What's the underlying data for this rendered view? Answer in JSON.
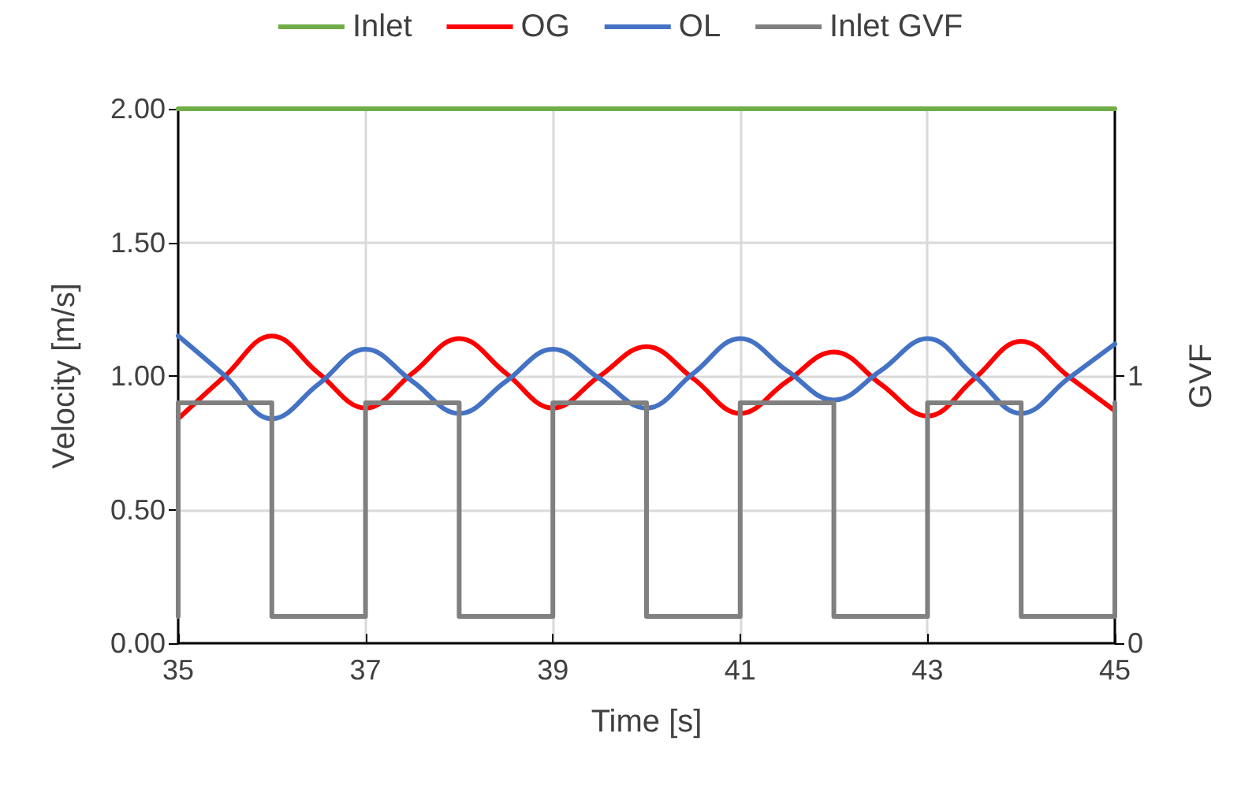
{
  "chart_data": {
    "type": "line",
    "xlabel": "Time [s]",
    "ylabel": "Velocity [m/s]",
    "y2label": "GVF",
    "xlim": [
      35,
      45
    ],
    "xticks": [
      35,
      37,
      39,
      41,
      43,
      45
    ],
    "ylim": [
      0,
      2
    ],
    "yticks": [
      {
        "value": 0,
        "label": "0.00"
      },
      {
        "value": 0.5,
        "label": "0.50"
      },
      {
        "value": 1,
        "label": "1.00"
      },
      {
        "value": 1.5,
        "label": "1.50"
      },
      {
        "value": 2,
        "label": "2.00"
      }
    ],
    "y2lim": [
      0,
      2
    ],
    "y2ticks": [
      0,
      1
    ],
    "grid": true,
    "legend": "top",
    "marker": "none",
    "line_style": "solid",
    "series": [
      {
        "name": "Inlet",
        "color": "#70ad47",
        "x": [
          35,
          45
        ],
        "values": [
          2,
          2
        ]
      },
      {
        "name": "OG",
        "color": "#ff0000",
        "x": [
          35,
          35.5,
          36,
          36.5,
          37,
          37.5,
          38,
          38.5,
          39,
          39.5,
          40,
          40.5,
          41,
          41.5,
          42,
          42.5,
          43,
          43.5,
          44,
          44.5,
          45
        ],
        "values": [
          0.84,
          1.0,
          1.15,
          1.01,
          0.88,
          1.01,
          1.14,
          1.01,
          0.88,
          1.0,
          1.11,
          0.99,
          0.86,
          0.98,
          1.09,
          0.97,
          0.85,
          0.99,
          1.13,
          1.0,
          0.87
        ]
      },
      {
        "name": "OL",
        "color": "#4472c4",
        "x": [
          35,
          35.5,
          36,
          36.5,
          37,
          37.5,
          38,
          38.5,
          39,
          39.5,
          40,
          40.5,
          41,
          41.5,
          42,
          42.5,
          43,
          43.5,
          44,
          44.5,
          45
        ],
        "values": [
          1.15,
          1.0,
          0.84,
          0.97,
          1.1,
          0.98,
          0.86,
          0.98,
          1.1,
          0.99,
          0.88,
          1.01,
          1.14,
          1.02,
          0.91,
          1.02,
          1.14,
          1.0,
          0.86,
          0.99,
          1.12
        ]
      },
      {
        "name": "Inlet GVF",
        "type": "step",
        "axis": "y2",
        "color": "#808080",
        "x": [
          35,
          35,
          36,
          37,
          38,
          39,
          40,
          41,
          42,
          43,
          44,
          45
        ],
        "values": [
          0.1,
          0.9,
          0.1,
          0.9,
          0.1,
          0.9,
          0.1,
          0.9,
          0.1,
          0.9,
          0.1,
          0.9
        ]
      }
    ]
  }
}
